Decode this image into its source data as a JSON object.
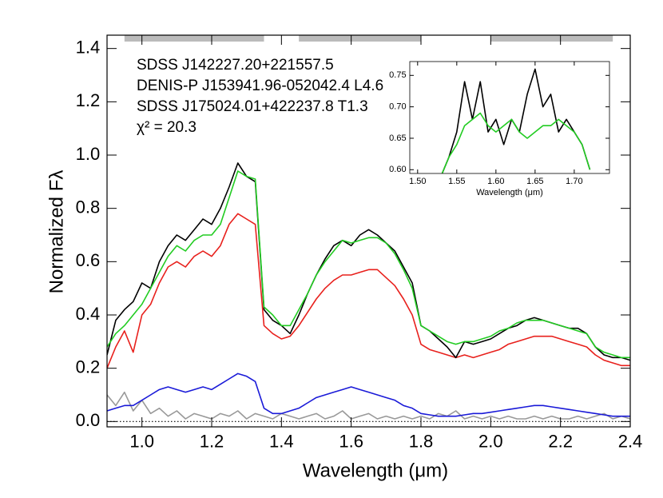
{
  "chart_data": [
    {
      "type": "line",
      "xlabel": "Wavelength (μm)",
      "ylabel": "Normalized Fλ",
      "annotations": [
        "χ² = 20.3"
      ],
      "xlim": [
        0.9,
        2.4
      ],
      "ylim": [
        -0.02,
        1.45
      ],
      "xticks": [
        {
          "value": 1,
          "label": "1.0"
        },
        1.2,
        1.4,
        1.6,
        1.8,
        {
          "value": 2,
          "label": "2.0"
        },
        2.2,
        2.4
      ],
      "yticks": [
        {
          "value": 0,
          "label": "0.0"
        },
        0.2,
        0.4,
        0.6,
        0.8,
        {
          "value": 1,
          "label": "1.0"
        },
        1.2,
        1.4
      ],
      "bands": [
        [
          0.95,
          1.35
        ],
        [
          1.45,
          1.8
        ],
        [
          2.0,
          2.35
        ]
      ],
      "band_color": "#bbbbbb",
      "hline": 0,
      "x": [
        0.9,
        0.925,
        0.95,
        0.975,
        1.0,
        1.025,
        1.05,
        1.075,
        1.1,
        1.125,
        1.15,
        1.175,
        1.2,
        1.225,
        1.25,
        1.275,
        1.3,
        1.325,
        1.35,
        1.375,
        1.4,
        1.425,
        1.45,
        1.475,
        1.5,
        1.525,
        1.55,
        1.575,
        1.6,
        1.625,
        1.65,
        1.675,
        1.7,
        1.725,
        1.75,
        1.775,
        1.8,
        1.825,
        1.85,
        1.875,
        1.9,
        1.925,
        1.95,
        1.975,
        2.0,
        2.025,
        2.05,
        2.075,
        2.1,
        2.125,
        2.15,
        2.175,
        2.2,
        2.225,
        2.25,
        2.275,
        2.3,
        2.325,
        2.35,
        2.375,
        2.4
      ],
      "series": [
        {
          "name": "SDSS J142227.20+221557.5",
          "color": "#000000",
          "values": [
            0.25,
            0.38,
            0.42,
            0.45,
            0.52,
            0.5,
            0.6,
            0.66,
            0.7,
            0.68,
            0.72,
            0.76,
            0.74,
            0.8,
            0.88,
            0.97,
            0.92,
            0.9,
            0.42,
            0.38,
            0.36,
            0.33,
            0.4,
            0.48,
            0.55,
            0.61,
            0.66,
            0.68,
            0.66,
            0.7,
            0.72,
            0.7,
            0.67,
            0.64,
            0.58,
            0.52,
            0.36,
            0.34,
            0.31,
            0.28,
            0.24,
            0.3,
            0.29,
            0.3,
            0.31,
            0.33,
            0.35,
            0.36,
            0.38,
            0.39,
            0.38,
            0.37,
            0.36,
            0.35,
            0.35,
            0.33,
            0.28,
            0.25,
            0.24,
            0.24,
            0.23
          ]
        },
        {
          "name": "DENIS-P J153941.96-052042.4 L4.6",
          "color": "#e8201c",
          "values": [
            0.2,
            0.28,
            0.34,
            0.26,
            0.4,
            0.44,
            0.52,
            0.58,
            0.6,
            0.58,
            0.62,
            0.64,
            0.62,
            0.66,
            0.74,
            0.78,
            0.76,
            0.74,
            0.36,
            0.33,
            0.31,
            0.32,
            0.36,
            0.41,
            0.46,
            0.5,
            0.53,
            0.55,
            0.55,
            0.56,
            0.57,
            0.57,
            0.54,
            0.51,
            0.46,
            0.4,
            0.29,
            0.27,
            0.26,
            0.25,
            0.24,
            0.25,
            0.24,
            0.25,
            0.26,
            0.27,
            0.29,
            0.3,
            0.31,
            0.32,
            0.32,
            0.32,
            0.31,
            0.3,
            0.29,
            0.28,
            0.25,
            0.23,
            0.22,
            0.21,
            0.21
          ]
        },
        {
          "name": "SDSS J175024.01+422237.8 T1.3",
          "color": "#1a1ad8",
          "values": [
            0.04,
            0.05,
            0.06,
            0.06,
            0.08,
            0.1,
            0.12,
            0.13,
            0.12,
            0.11,
            0.12,
            0.13,
            0.12,
            0.14,
            0.16,
            0.18,
            0.17,
            0.15,
            0.05,
            0.03,
            0.03,
            0.04,
            0.05,
            0.07,
            0.09,
            0.1,
            0.11,
            0.12,
            0.13,
            0.12,
            0.11,
            0.1,
            0.09,
            0.08,
            0.06,
            0.05,
            0.03,
            0.025,
            0.02,
            0.02,
            0.02,
            0.025,
            0.03,
            0.03,
            0.035,
            0.04,
            0.045,
            0.05,
            0.055,
            0.06,
            0.06,
            0.055,
            0.05,
            0.045,
            0.04,
            0.035,
            0.03,
            0.025,
            0.02,
            0.02,
            0.02
          ]
        },
        {
          "color": "#22cc22",
          "values": [
            0.28,
            0.33,
            0.36,
            0.4,
            0.44,
            0.5,
            0.56,
            0.62,
            0.66,
            0.64,
            0.68,
            0.7,
            0.7,
            0.74,
            0.84,
            0.94,
            0.92,
            0.91,
            0.43,
            0.4,
            0.36,
            0.36,
            0.42,
            0.48,
            0.55,
            0.6,
            0.64,
            0.68,
            0.67,
            0.68,
            0.69,
            0.69,
            0.67,
            0.63,
            0.57,
            0.5,
            0.36,
            0.34,
            0.32,
            0.3,
            0.29,
            0.3,
            0.3,
            0.31,
            0.32,
            0.34,
            0.35,
            0.37,
            0.38,
            0.38,
            0.38,
            0.37,
            0.36,
            0.35,
            0.34,
            0.33,
            0.28,
            0.26,
            0.25,
            0.24,
            0.24
          ]
        },
        {
          "color": "#999999",
          "values": [
            0.1,
            0.06,
            0.11,
            0.04,
            0.08,
            0.03,
            0.05,
            0.02,
            0.04,
            0.01,
            0.03,
            0.02,
            0.01,
            0.03,
            0.02,
            0.04,
            0.01,
            0.03,
            0.02,
            0.01,
            0.03,
            0.02,
            0.01,
            0.02,
            0.03,
            0.01,
            0.02,
            0.04,
            0.01,
            0.02,
            0.03,
            0.01,
            0.02,
            0.01,
            0.02,
            0.01,
            0.02,
            0.01,
            0.03,
            0.02,
            0.04,
            0.01,
            0.02,
            0.01,
            0.02,
            0.01,
            0.02,
            0.01,
            0.01,
            0.02,
            0.01,
            0.02,
            0.01,
            0.01,
            0.02,
            0.01,
            0.02,
            0.03,
            0.01,
            0.02,
            0.01
          ]
        }
      ]
    },
    {
      "type": "line",
      "xlabel": "Wavelength (μm)",
      "xlim": [
        1.49,
        1.745
      ],
      "ylim": [
        0.594,
        0.772
      ],
      "xticks": [
        {
          "value": 1.5,
          "label": "1.50"
        },
        1.55,
        {
          "value": 1.6,
          "label": "1.60"
        },
        1.65,
        {
          "value": 1.7,
          "label": "1.70"
        }
      ],
      "yticks": [
        {
          "value": 0.6,
          "label": "0.60"
        },
        0.65,
        {
          "value": 0.7,
          "label": "0.70"
        },
        0.75
      ],
      "x": [
        1.53,
        1.54,
        1.55,
        1.56,
        1.57,
        1.58,
        1.59,
        1.6,
        1.61,
        1.62,
        1.63,
        1.64,
        1.65,
        1.66,
        1.67,
        1.68,
        1.69,
        1.7,
        1.71,
        1.72
      ],
      "series": [
        {
          "color": "#000000",
          "values": [
            0.59,
            0.62,
            0.66,
            0.74,
            0.68,
            0.74,
            0.66,
            0.68,
            0.64,
            0.68,
            0.66,
            0.72,
            0.76,
            0.7,
            0.72,
            0.66,
            0.68,
            0.66,
            0.64,
            0.6
          ]
        },
        {
          "color": "#22cc22",
          "values": [
            0.59,
            0.62,
            0.64,
            0.67,
            0.68,
            0.69,
            0.67,
            0.66,
            0.67,
            0.68,
            0.66,
            0.65,
            0.66,
            0.67,
            0.67,
            0.68,
            0.67,
            0.66,
            0.64,
            0.6
          ]
        }
      ]
    }
  ]
}
